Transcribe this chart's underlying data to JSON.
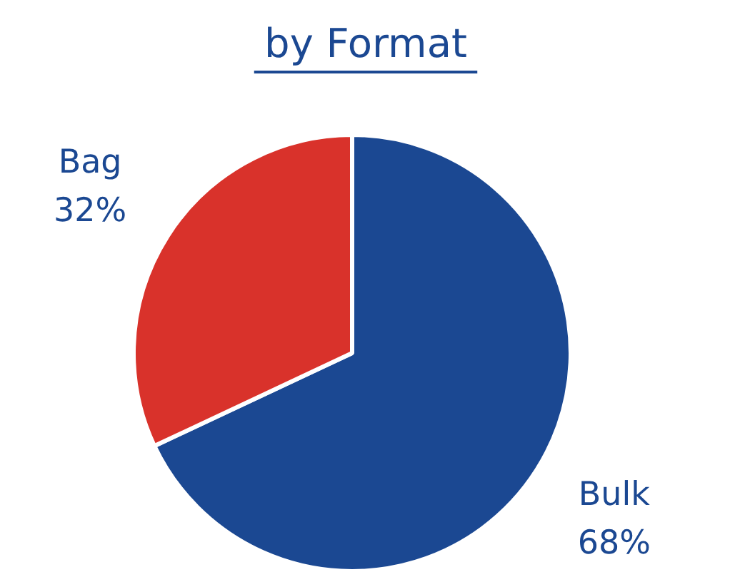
{
  "chart_data": {
    "type": "pie",
    "title": "by Format",
    "categories": [
      "Bulk",
      "Bag"
    ],
    "values": [
      68,
      32
    ],
    "value_labels": [
      "68%",
      "32%"
    ],
    "colors": [
      "#1b4892",
      "#d9322b"
    ]
  }
}
